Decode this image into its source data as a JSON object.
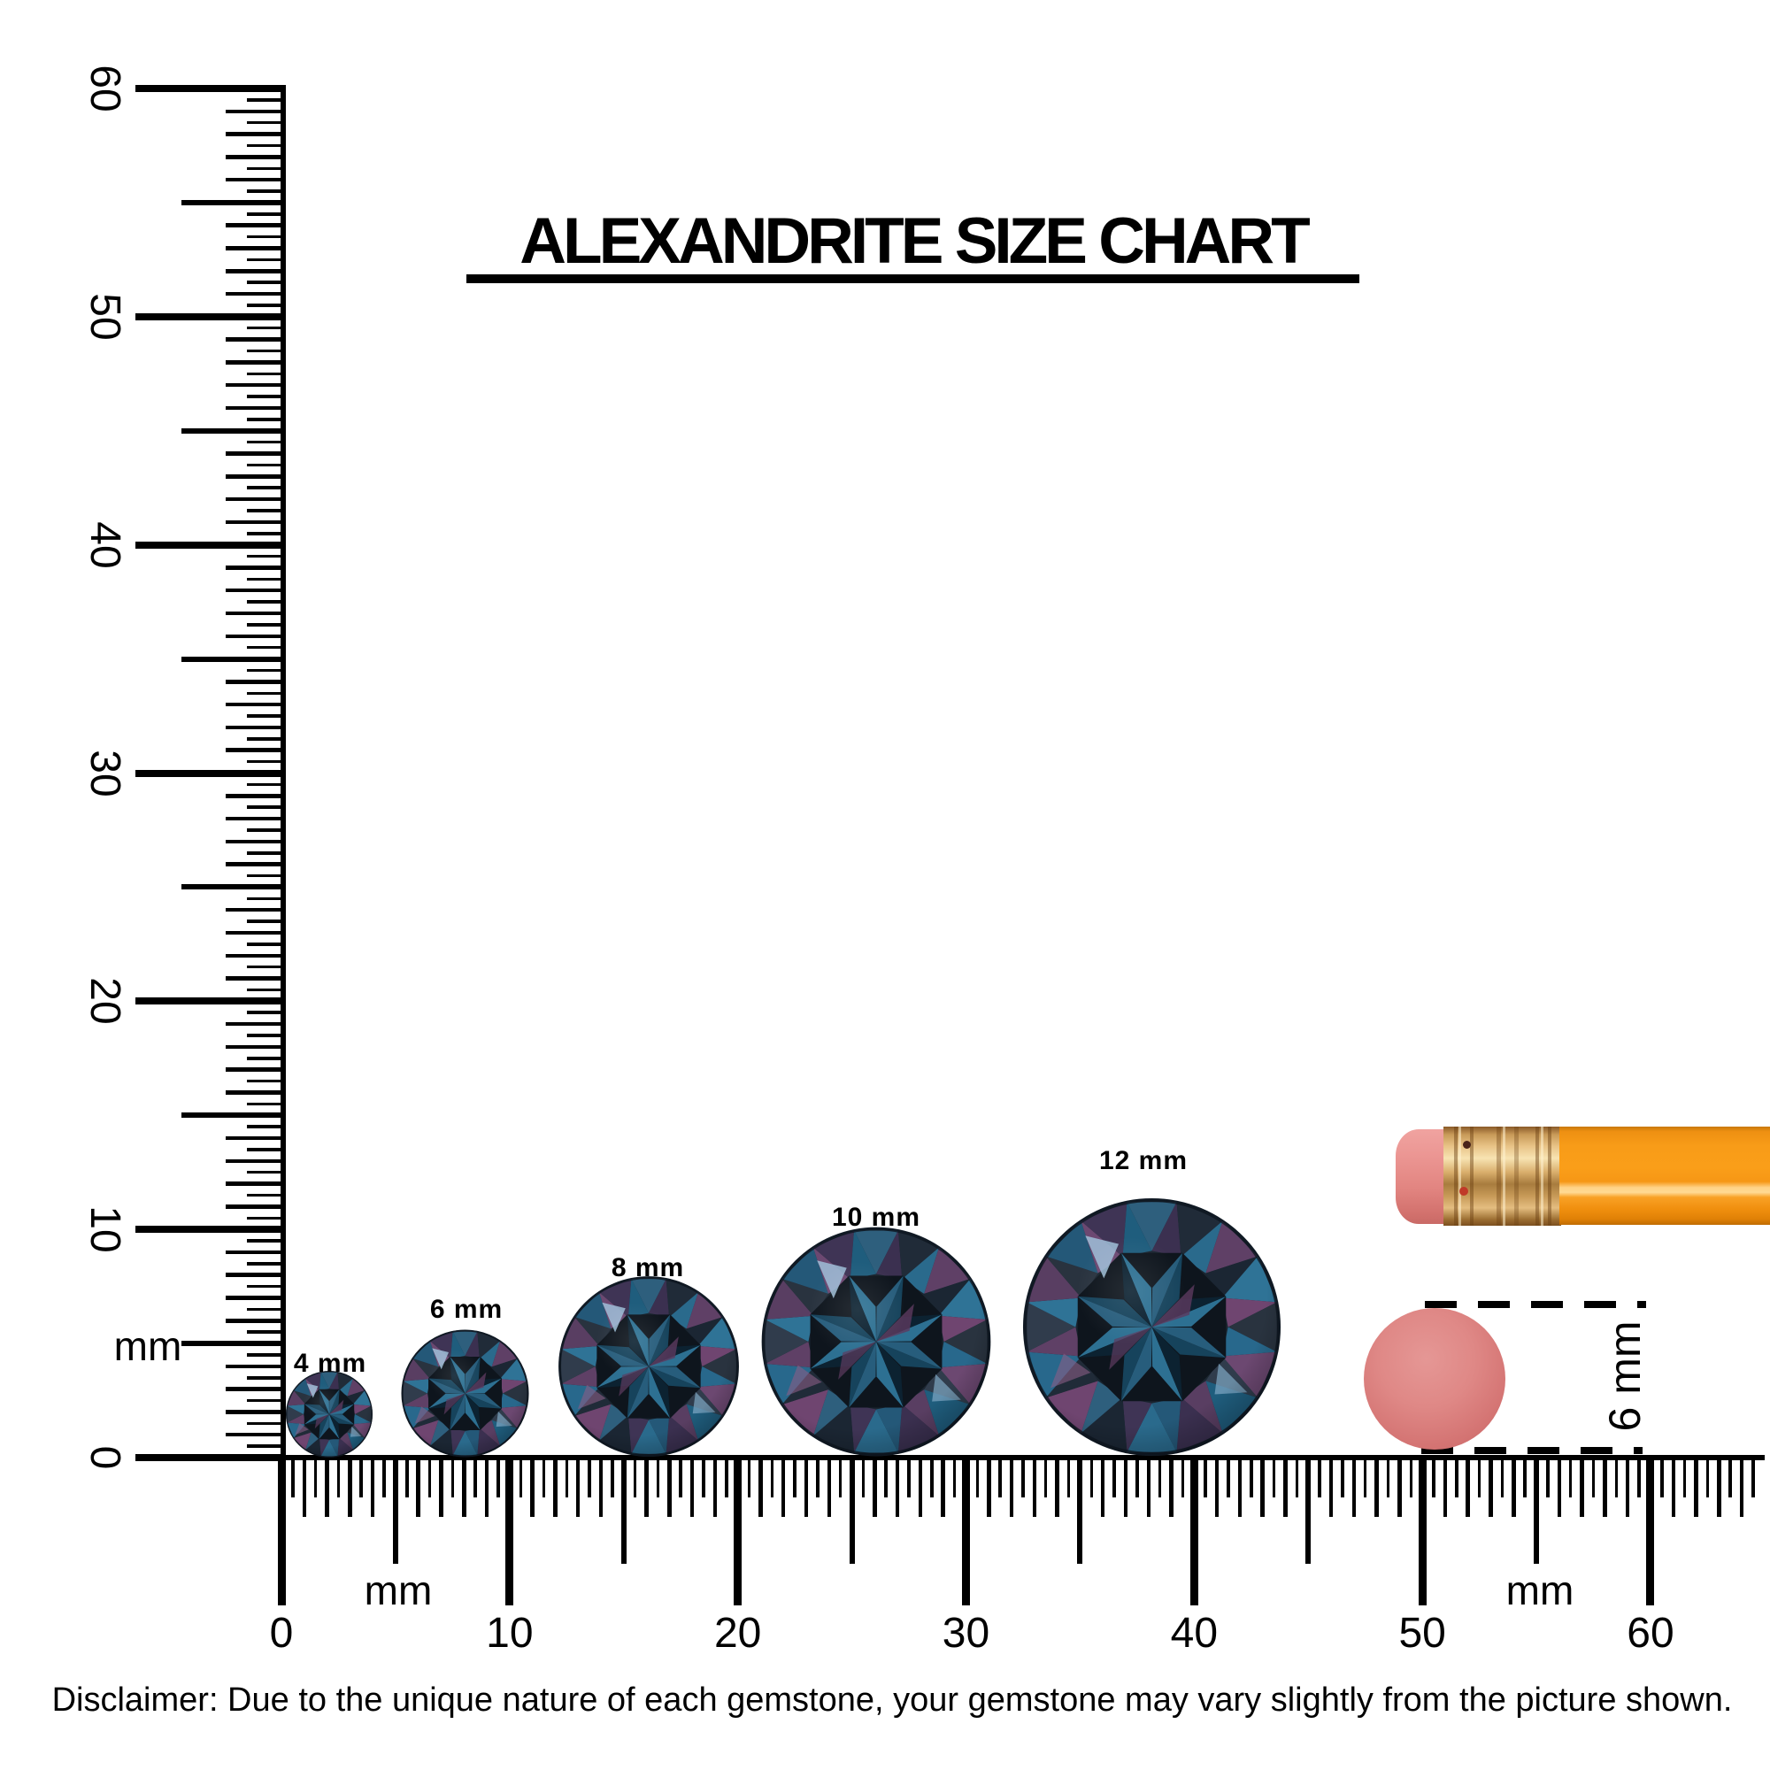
{
  "title": "ALEXANDRITE SIZE CHART",
  "gems": [
    {
      "label": "4 mm",
      "mm": 4
    },
    {
      "label": "6 mm",
      "mm": 6
    },
    {
      "label": "8 mm",
      "mm": 8
    },
    {
      "label": "10 mm",
      "mm": 10
    },
    {
      "label": "12 mm",
      "mm": 12
    }
  ],
  "left_ruler": {
    "unit": "mm",
    "labels": [
      "0",
      "10",
      "20",
      "30",
      "40",
      "50",
      "60"
    ]
  },
  "bottom_ruler": {
    "unit_left": "mm",
    "unit_right": "mm",
    "labels": [
      "0",
      "10",
      "20",
      "30",
      "40",
      "50",
      "60"
    ]
  },
  "reference_circle": {
    "label": "6 mm"
  },
  "disclaimer": "Disclaimer: Due to the unique nature of each gemstone, your gemstone may vary slightly from the picture shown.",
  "colors": {
    "background": "#ffffff",
    "ink": "#000000",
    "pencil_orange": "#f99c18",
    "ferrule_gold": "#d9ae6c",
    "eraser_pink": "#e8918f",
    "reference_pink": "#d97673",
    "gem_base": "#1c2733",
    "gem_teal": "#2f7396",
    "gem_purple": "#5f4066"
  }
}
